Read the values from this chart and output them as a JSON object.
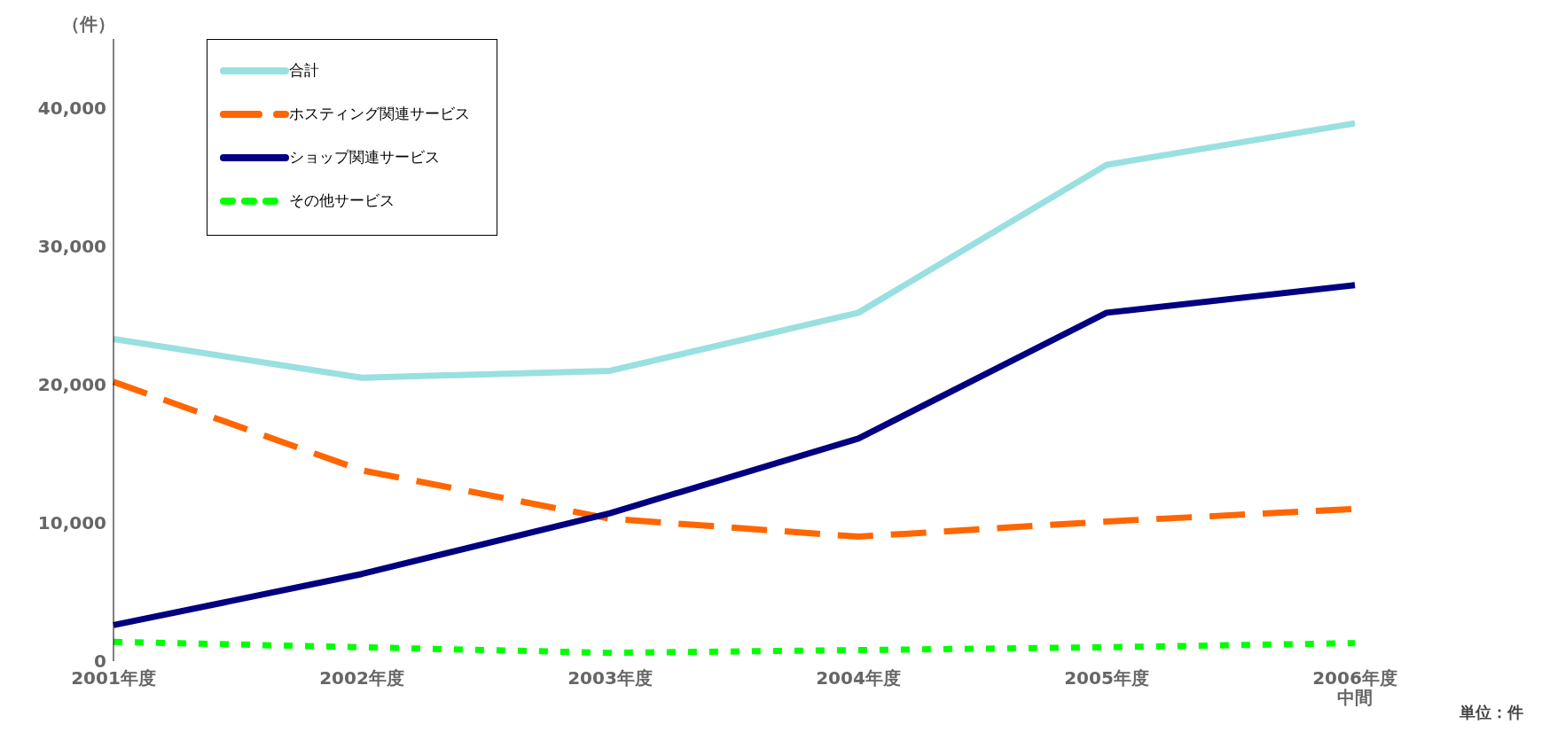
{
  "chart_data": {
    "type": "line",
    "ylabel": "（件）",
    "categories": [
      "2001年度",
      "2002年度",
      "2003年度",
      "2004年度",
      "2005年度",
      "2006年度中間"
    ],
    "series": [
      {
        "name": "合計",
        "color": "#99e0e0",
        "line_style": "solid",
        "values": [
          23300,
          20500,
          21000,
          25200,
          35900,
          38900
        ]
      },
      {
        "name": "ホスティング関連サービス",
        "color": "#ff6600",
        "line_style": "dashed",
        "values": [
          20200,
          13800,
          10300,
          9000,
          10100,
          11000
        ]
      },
      {
        "name": "ショップ関連サービス",
        "color": "#000080",
        "line_style": "solid",
        "values": [
          2600,
          6300,
          10700,
          16100,
          25200,
          27200
        ]
      },
      {
        "name": "その他サービス",
        "color": "#00ff00",
        "line_style": "dotted",
        "values": [
          1400,
          1000,
          600,
          800,
          1000,
          1300
        ]
      }
    ],
    "ylim": [
      0,
      45000
    ],
    "yticks": [
      {
        "value": 0,
        "label": "0"
      },
      {
        "value": 10000,
        "label": "10,000"
      },
      {
        "value": 20000,
        "label": "20,000"
      },
      {
        "value": 30000,
        "label": "30,000"
      },
      {
        "value": 40000,
        "label": "40,000"
      }
    ],
    "grid": false,
    "legend": "top left",
    "marker": "none",
    "annotations": [
      "単位：件"
    ]
  }
}
